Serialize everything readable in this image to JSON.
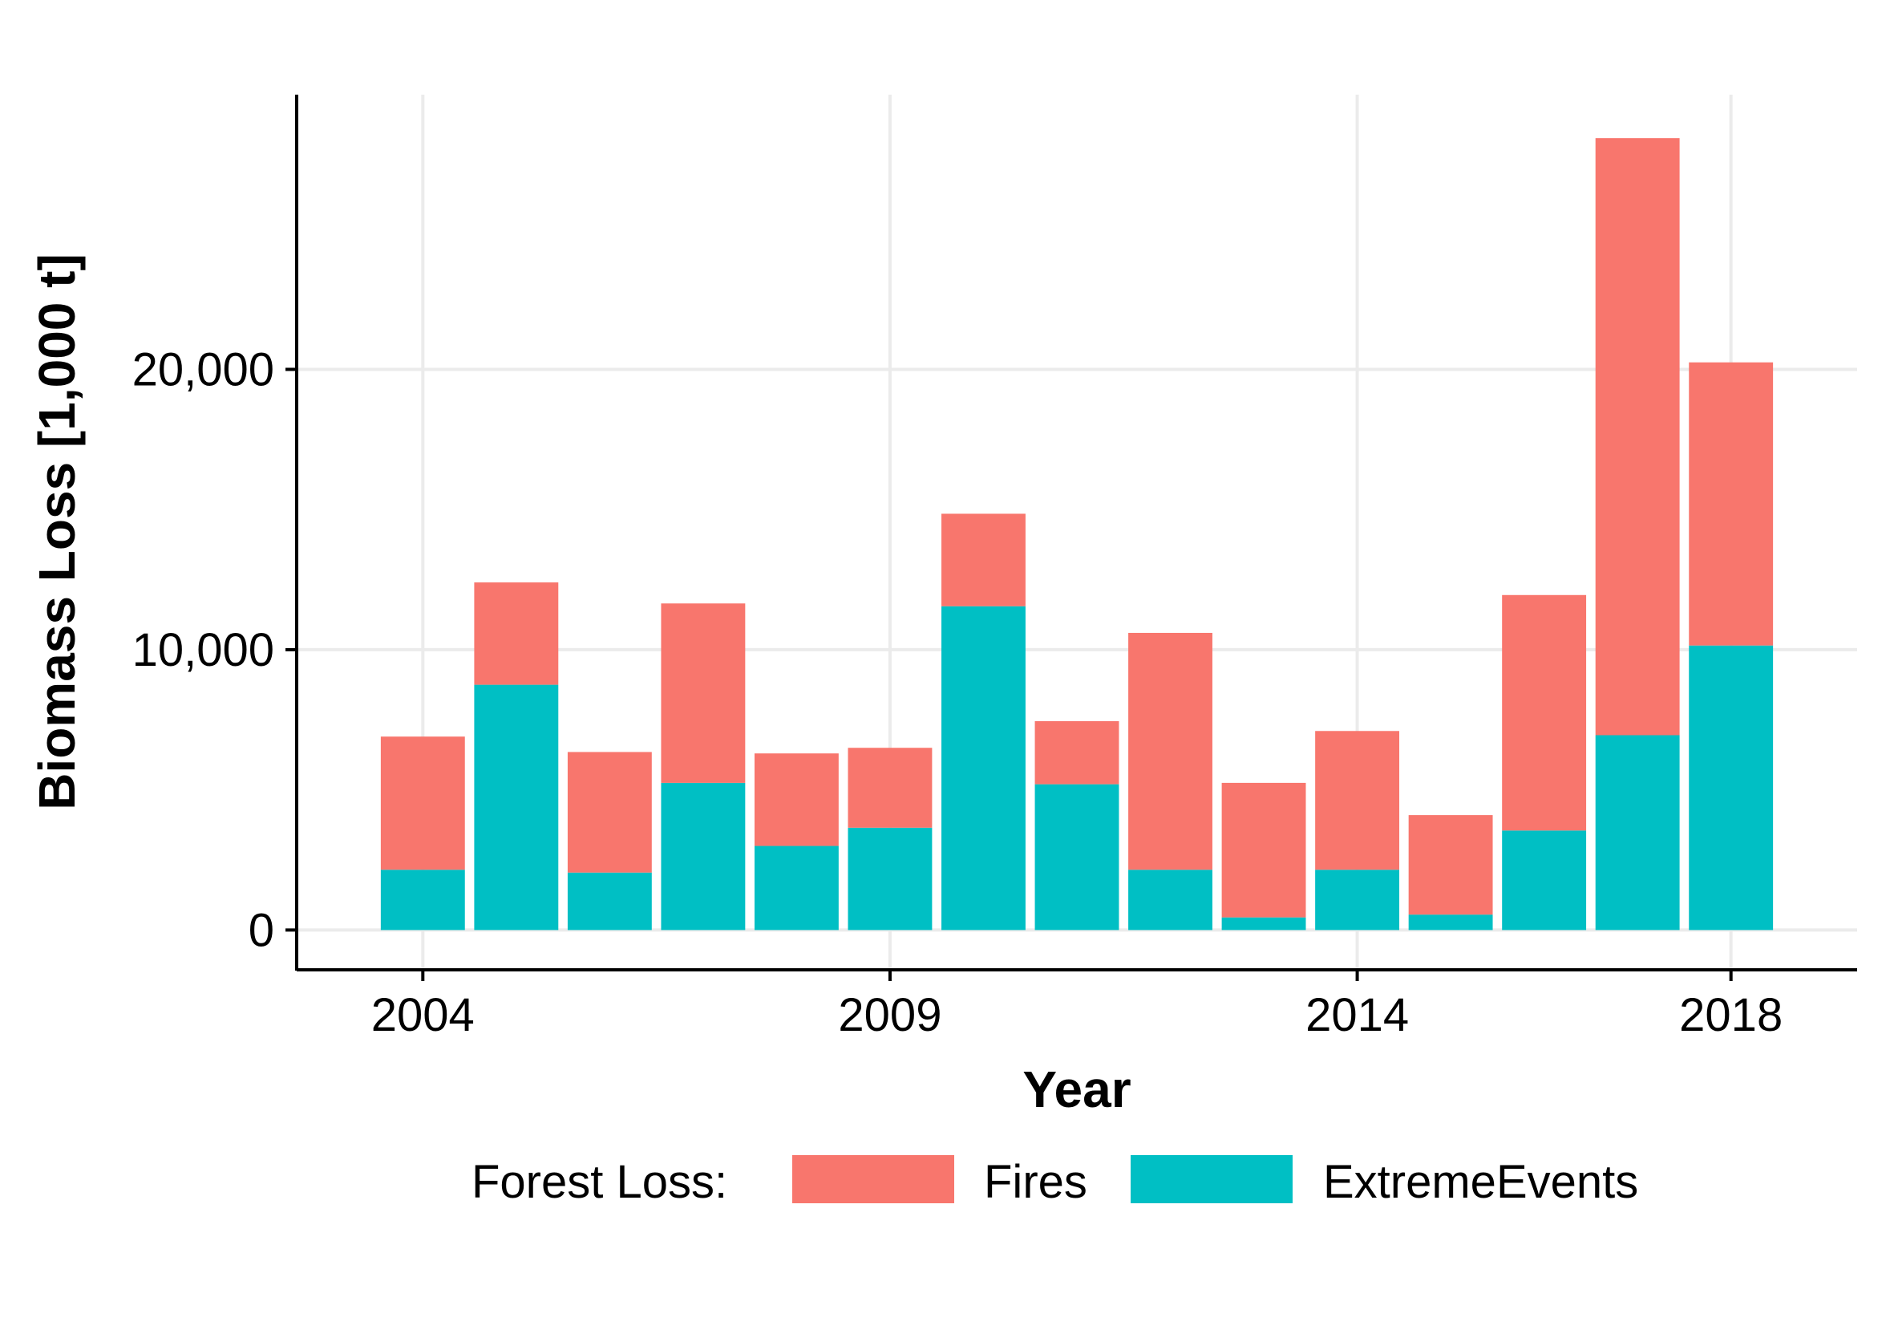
{
  "chart_data": {
    "type": "bar",
    "stacked": true,
    "title": "",
    "xlabel": "Year",
    "ylabel": "Biomass Loss [1,000 t]",
    "x": [
      2004,
      2005,
      2006,
      2007,
      2008,
      2009,
      2010,
      2011,
      2012,
      2013,
      2014,
      2015,
      2016,
      2017,
      2018
    ],
    "series": [
      {
        "name": "ExtremeEvents",
        "color": "#00BFC4",
        "values": [
          2150,
          8750,
          2050,
          5250,
          3000,
          3650,
          11550,
          5200,
          2150,
          450,
          2150,
          550,
          3550,
          6950,
          10150
        ]
      },
      {
        "name": "Fires",
        "color": "#F8766D",
        "values": [
          4750,
          3650,
          4300,
          6400,
          3300,
          2850,
          3300,
          2250,
          8450,
          4800,
          4950,
          3550,
          8400,
          21300,
          10100
        ]
      }
    ],
    "stack_order_bottom_to_top": [
      "ExtremeEvents",
      "Fires"
    ],
    "x_ticks": [
      2004,
      2009,
      2014,
      2018
    ],
    "x_tick_labels": [
      "2004",
      "2009",
      "2014",
      "2018"
    ],
    "y_ticks": [
      0,
      10000,
      20000
    ],
    "y_tick_labels": [
      "0",
      "10,000",
      "20,000"
    ],
    "xlim": [
      2002.65,
      2019.35
    ],
    "ylim": [
      -1420,
      29800
    ],
    "grid": true,
    "legend": {
      "position": "bottom",
      "title": "Forest Loss:",
      "entries": [
        {
          "label": "Fires",
          "color": "#F8766D"
        },
        {
          "label": "ExtremeEvents",
          "color": "#00BFC4"
        }
      ]
    }
  }
}
